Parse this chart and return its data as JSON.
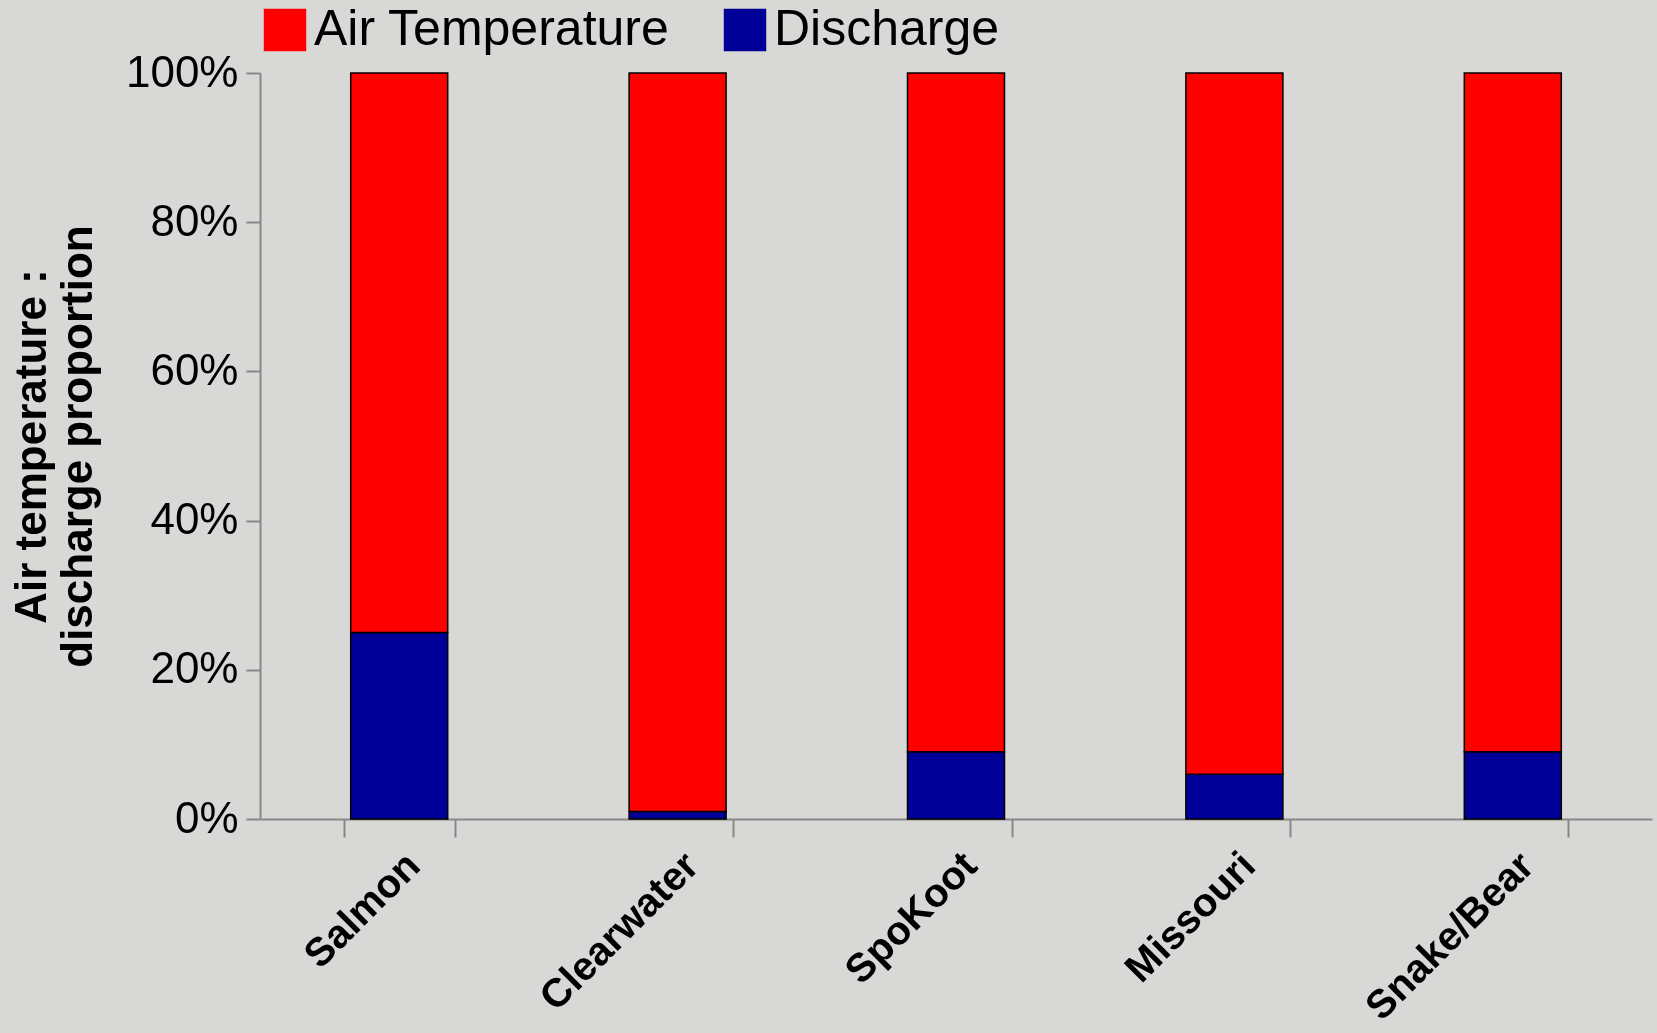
{
  "chart_data": {
    "type": "bar",
    "stacked": true,
    "ylabel": "Air temperature :\ndischarge proportion",
    "categories": [
      "Salmon",
      "Clearwater",
      "SpoKoot",
      "Missouri",
      "Snake/Bear"
    ],
    "series": [
      {
        "name": "Discharge",
        "color": "#000099",
        "values": [
          25,
          1,
          9,
          6,
          9
        ]
      },
      {
        "name": "Air Temperature",
        "color": "#ff0000",
        "values": [
          75,
          99,
          91,
          94,
          91
        ]
      }
    ],
    "ylim": [
      0,
      100
    ],
    "yticks": [
      {
        "value": 0,
        "label": "0%"
      },
      {
        "value": 20,
        "label": "20%"
      },
      {
        "value": 40,
        "label": "40%"
      },
      {
        "value": 60,
        "label": "60%"
      },
      {
        "value": 80,
        "label": "80%"
      },
      {
        "value": 100,
        "label": "100%"
      }
    ],
    "grid": false,
    "legend": "top"
  }
}
